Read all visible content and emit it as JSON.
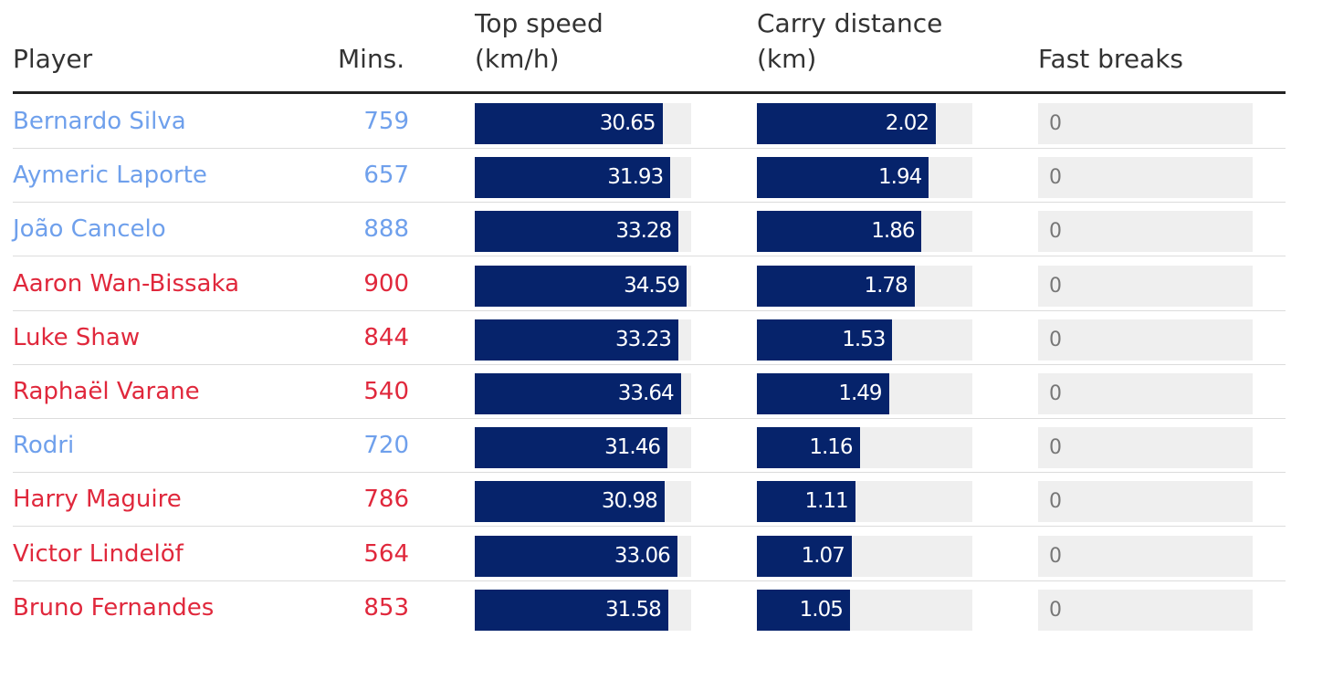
{
  "headers": {
    "player": "Player",
    "mins": "Mins.",
    "top_speed_1": "Top speed",
    "top_speed_2": "(km/h)",
    "carry_1": "Carry distance",
    "carry_2": "(km)",
    "fast_breaks": "Fast breaks"
  },
  "colors": {
    "team_a": "#6fa0ec",
    "team_b": "#e0283c",
    "bar": "#06236b",
    "track": "#efefef"
  },
  "chart_data": {
    "type": "table",
    "columns": [
      "Player",
      "Mins.",
      "Top speed (km/h)",
      "Carry distance (km)",
      "Fast breaks"
    ],
    "top_speed_max": 34.59,
    "carry_max": 2.02,
    "rows": [
      {
        "player": "Bernardo Silva",
        "team": "a",
        "mins": "759",
        "top_speed": "30.65",
        "carry": "2.02",
        "fast_breaks": "0"
      },
      {
        "player": "Aymeric Laporte",
        "team": "a",
        "mins": "657",
        "top_speed": "31.93",
        "carry": "1.94",
        "fast_breaks": "0"
      },
      {
        "player": "João Cancelo",
        "team": "a",
        "mins": "888",
        "top_speed": "33.28",
        "carry": "1.86",
        "fast_breaks": "0"
      },
      {
        "player": "Aaron Wan-Bissaka",
        "team": "b",
        "mins": "900",
        "top_speed": "34.59",
        "carry": "1.78",
        "fast_breaks": "0"
      },
      {
        "player": "Luke Shaw",
        "team": "b",
        "mins": "844",
        "top_speed": "33.23",
        "carry": "1.53",
        "fast_breaks": "0"
      },
      {
        "player": "Raphaël Varane",
        "team": "b",
        "mins": "540",
        "top_speed": "33.64",
        "carry": "1.49",
        "fast_breaks": "0"
      },
      {
        "player": "Rodri",
        "team": "a",
        "mins": "720",
        "top_speed": "31.46",
        "carry": "1.16",
        "fast_breaks": "0"
      },
      {
        "player": "Harry Maguire",
        "team": "b",
        "mins": "786",
        "top_speed": "30.98",
        "carry": "1.11",
        "fast_breaks": "0"
      },
      {
        "player": "Victor Lindelöf",
        "team": "b",
        "mins": "564",
        "top_speed": "33.06",
        "carry": "1.07",
        "fast_breaks": "0"
      },
      {
        "player": "Bruno Fernandes",
        "team": "b",
        "mins": "853",
        "top_speed": "31.58",
        "carry": "1.05",
        "fast_breaks": "0"
      }
    ]
  }
}
